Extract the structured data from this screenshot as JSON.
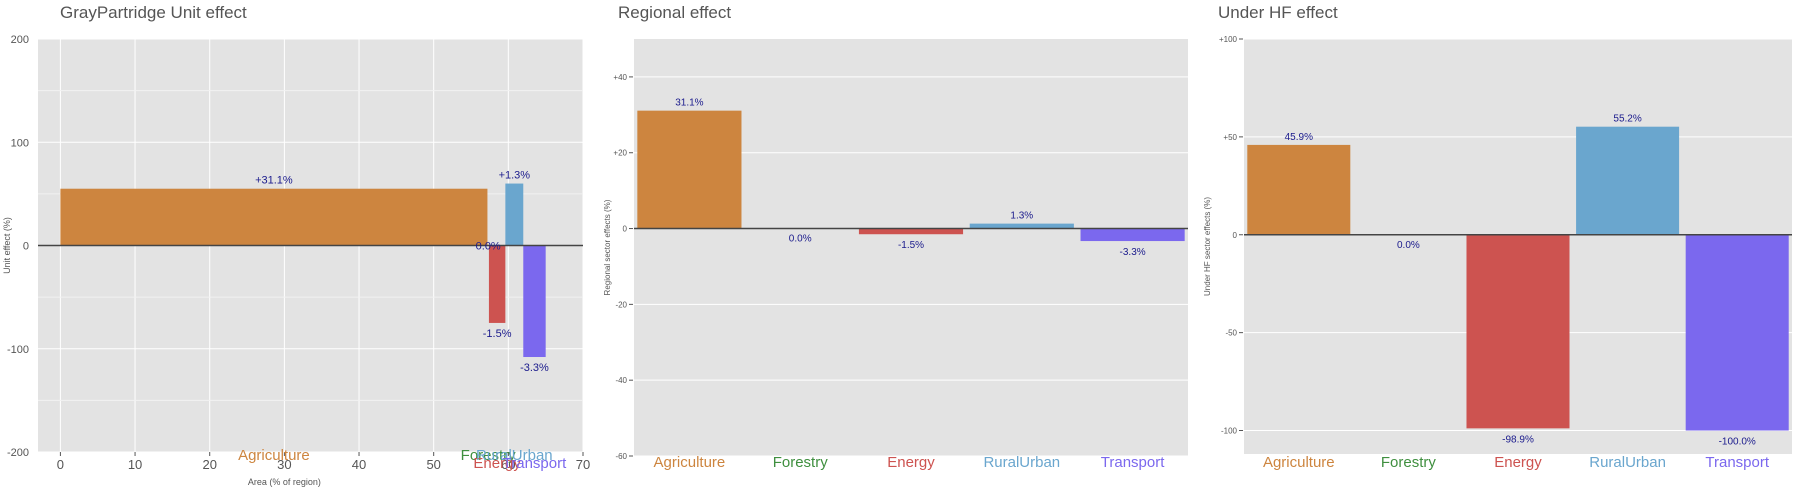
{
  "chart_data": [
    {
      "type": "bar",
      "title": "GrayPartridge Unit effect",
      "xlabel": "Area (% of region)",
      "ylabel": "Unit effect (%)",
      "xlim": [
        -3,
        70
      ],
      "ylim": [
        -200,
        200
      ],
      "xticks": [
        0,
        10,
        20,
        30,
        40,
        50,
        60,
        70
      ],
      "xtick_labels": [
        "0",
        "10",
        "20",
        "30",
        "40",
        "50",
        "60",
        "70"
      ],
      "yticks": [
        -200,
        -100,
        0,
        100,
        200
      ],
      "ytick_labels": [
        "-200",
        "-100",
        "0",
        "100",
        "200"
      ],
      "grid": true,
      "bars": [
        {
          "category": "Agriculture",
          "x0": 0,
          "x1": 57.2,
          "value": 55,
          "label": "+31.1%",
          "color": "#CD853F"
        },
        {
          "category": "Forestry",
          "x0": 57.2,
          "x1": 57.4,
          "value": 0,
          "label": "0.0%",
          "color": "#3F8F3F"
        },
        {
          "category": "Energy",
          "x0": 57.4,
          "x1": 59.6,
          "value": -75,
          "label": "-1.5%",
          "color": "#CD5350"
        },
        {
          "category": "RuralUrban",
          "x0": 59.6,
          "x1": 62,
          "value": 60,
          "label": "+1.3%",
          "color": "#6AA6CE"
        },
        {
          "category": "Transport",
          "x0": 62,
          "x1": 65,
          "value": -108,
          "label": "-3.3%",
          "color": "#7B68EE"
        }
      ],
      "category_labels": [
        "Agriculture",
        "Forestry",
        "Energy",
        "RuralUrban",
        "Transport"
      ]
    },
    {
      "type": "bar",
      "title": "Regional effect",
      "xlabel": "",
      "ylabel": "Regional sector effects (%)",
      "ylim": [
        -60,
        50
      ],
      "yticks": [
        -60,
        -40,
        -20,
        0,
        20,
        40
      ],
      "ytick_labels": [
        "-60",
        "-40",
        "-20",
        "0",
        "+20",
        "+40"
      ],
      "grid": true,
      "categories": [
        "Agriculture",
        "Forestry",
        "Energy",
        "RuralUrban",
        "Transport"
      ],
      "values": [
        31.1,
        0.0,
        -1.5,
        1.3,
        -3.3
      ],
      "value_labels": [
        "31.1%",
        "0.0%",
        "-1.5%",
        "1.3%",
        "-3.3%"
      ],
      "colors": [
        "#CD853F",
        "#3F8F3F",
        "#CD5350",
        "#6AA6CE",
        "#7B68EE"
      ]
    },
    {
      "type": "bar",
      "title": "Under HF effect",
      "xlabel": "",
      "ylabel": "Under HF sector effects (%)",
      "ylim": [
        -112,
        100
      ],
      "yticks": [
        -100,
        -50,
        0,
        50,
        100
      ],
      "ytick_labels": [
        "-100",
        "-50",
        "0",
        "+50",
        "+100"
      ],
      "grid": true,
      "categories": [
        "Agriculture",
        "Forestry",
        "Energy",
        "RuralUrban",
        "Transport"
      ],
      "values": [
        45.9,
        0.0,
        -98.9,
        55.2,
        -100.0
      ],
      "value_labels": [
        "45.9%",
        "0.0%",
        "-98.9%",
        "55.2%",
        "-100.0%"
      ],
      "colors": [
        "#CD853F",
        "#3F8F3F",
        "#CD5350",
        "#6AA6CE",
        "#7B68EE"
      ]
    }
  ]
}
